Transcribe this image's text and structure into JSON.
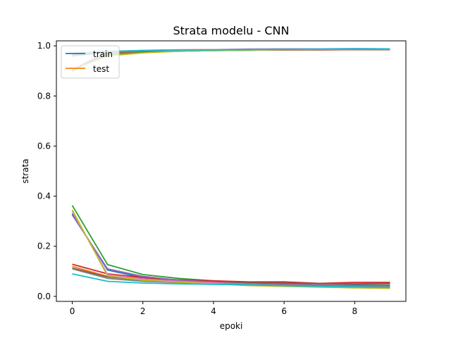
{
  "chart_data": {
    "type": "line",
    "title": "Strata modelu - CNN",
    "xlabel": "epoki",
    "ylabel": "strata",
    "xlim": [
      -0.45,
      9.45
    ],
    "ylim": [
      -0.02,
      1.02
    ],
    "x_ticks": [
      0,
      2,
      4,
      6,
      8
    ],
    "y_ticks": [
      0.0,
      0.2,
      0.4,
      0.6,
      0.8,
      1.0
    ],
    "y_tick_labels": [
      "0.0",
      "0.2",
      "0.4",
      "0.6",
      "0.8",
      "1.0"
    ],
    "grid": false,
    "legend_position": "top-left",
    "legend": [
      {
        "name": "train",
        "color": "#1f77b4"
      },
      {
        "name": "test",
        "color": "#ff7f0e"
      }
    ],
    "x": [
      0,
      1,
      2,
      3,
      4,
      5,
      6,
      7,
      8,
      9
    ],
    "series": [
      {
        "color": "#1f77b4",
        "values": [
          0.9,
          0.97,
          0.975,
          0.98,
          0.982,
          0.985,
          0.986,
          0.987,
          0.988,
          0.988
        ]
      },
      {
        "color": "#ff7f0e",
        "values": [
          0.905,
          0.968,
          0.974,
          0.979,
          0.981,
          0.983,
          0.984,
          0.985,
          0.986,
          0.985
        ]
      },
      {
        "color": "#2ca02c",
        "values": [
          0.905,
          0.965,
          0.973,
          0.978,
          0.981,
          0.983,
          0.985,
          0.986,
          0.987,
          0.987
        ]
      },
      {
        "color": "#d62728",
        "values": [
          0.96,
          0.975,
          0.978,
          0.98,
          0.982,
          0.983,
          0.984,
          0.984,
          0.985,
          0.985
        ]
      },
      {
        "color": "#9467bd",
        "values": [
          0.905,
          0.975,
          0.982,
          0.984,
          0.985,
          0.987,
          0.988,
          0.988,
          0.989,
          0.988
        ]
      },
      {
        "color": "#8c564b",
        "values": [
          0.965,
          0.975,
          0.978,
          0.98,
          0.982,
          0.983,
          0.984,
          0.985,
          0.985,
          0.985
        ]
      },
      {
        "color": "#e377c2",
        "values": [
          0.965,
          0.978,
          0.982,
          0.984,
          0.985,
          0.986,
          0.987,
          0.987,
          0.988,
          0.988
        ]
      },
      {
        "color": "#7f7f7f",
        "values": [
          0.962,
          0.976,
          0.98,
          0.982,
          0.984,
          0.985,
          0.986,
          0.986,
          0.987,
          0.987
        ]
      },
      {
        "color": "#bcbd22",
        "values": [
          0.904,
          0.96,
          0.972,
          0.978,
          0.981,
          0.983,
          0.985,
          0.986,
          0.987,
          0.987
        ]
      },
      {
        "color": "#17becf",
        "values": [
          0.97,
          0.978,
          0.981,
          0.983,
          0.984,
          0.985,
          0.986,
          0.987,
          0.988,
          0.988
        ]
      },
      {
        "color": "#1f77b4",
        "values": [
          0.33,
          0.105,
          0.075,
          0.062,
          0.056,
          0.052,
          0.05,
          0.047,
          0.045,
          0.044
        ]
      },
      {
        "color": "#ff7f0e",
        "values": [
          0.12,
          0.08,
          0.065,
          0.058,
          0.055,
          0.053,
          0.052,
          0.05,
          0.05,
          0.05
        ]
      },
      {
        "color": "#2ca02c",
        "values": [
          0.363,
          0.127,
          0.087,
          0.072,
          0.062,
          0.055,
          0.05,
          0.046,
          0.043,
          0.04
        ]
      },
      {
        "color": "#d62728",
        "values": [
          0.128,
          0.09,
          0.075,
          0.066,
          0.062,
          0.058,
          0.058,
          0.052,
          0.056,
          0.056
        ]
      },
      {
        "color": "#9467bd",
        "values": [
          0.325,
          0.11,
          0.08,
          0.065,
          0.058,
          0.055,
          0.05,
          0.046,
          0.043,
          0.04
        ]
      },
      {
        "color": "#8c564b",
        "values": [
          0.113,
          0.078,
          0.065,
          0.06,
          0.058,
          0.055,
          0.053,
          0.052,
          0.05,
          0.052
        ]
      },
      {
        "color": "#e377c2",
        "values": [
          0.34,
          0.087,
          0.07,
          0.06,
          0.055,
          0.048,
          0.045,
          0.042,
          0.04,
          0.037
        ]
      },
      {
        "color": "#7f7f7f",
        "values": [
          0.11,
          0.072,
          0.06,
          0.055,
          0.05,
          0.047,
          0.045,
          0.043,
          0.042,
          0.041
        ]
      },
      {
        "color": "#bcbd22",
        "values": [
          0.345,
          0.082,
          0.065,
          0.057,
          0.05,
          0.043,
          0.04,
          0.037,
          0.034,
          0.032
        ]
      },
      {
        "color": "#17becf",
        "values": [
          0.09,
          0.06,
          0.053,
          0.05,
          0.048,
          0.046,
          0.043,
          0.04,
          0.038,
          0.036
        ]
      }
    ]
  }
}
